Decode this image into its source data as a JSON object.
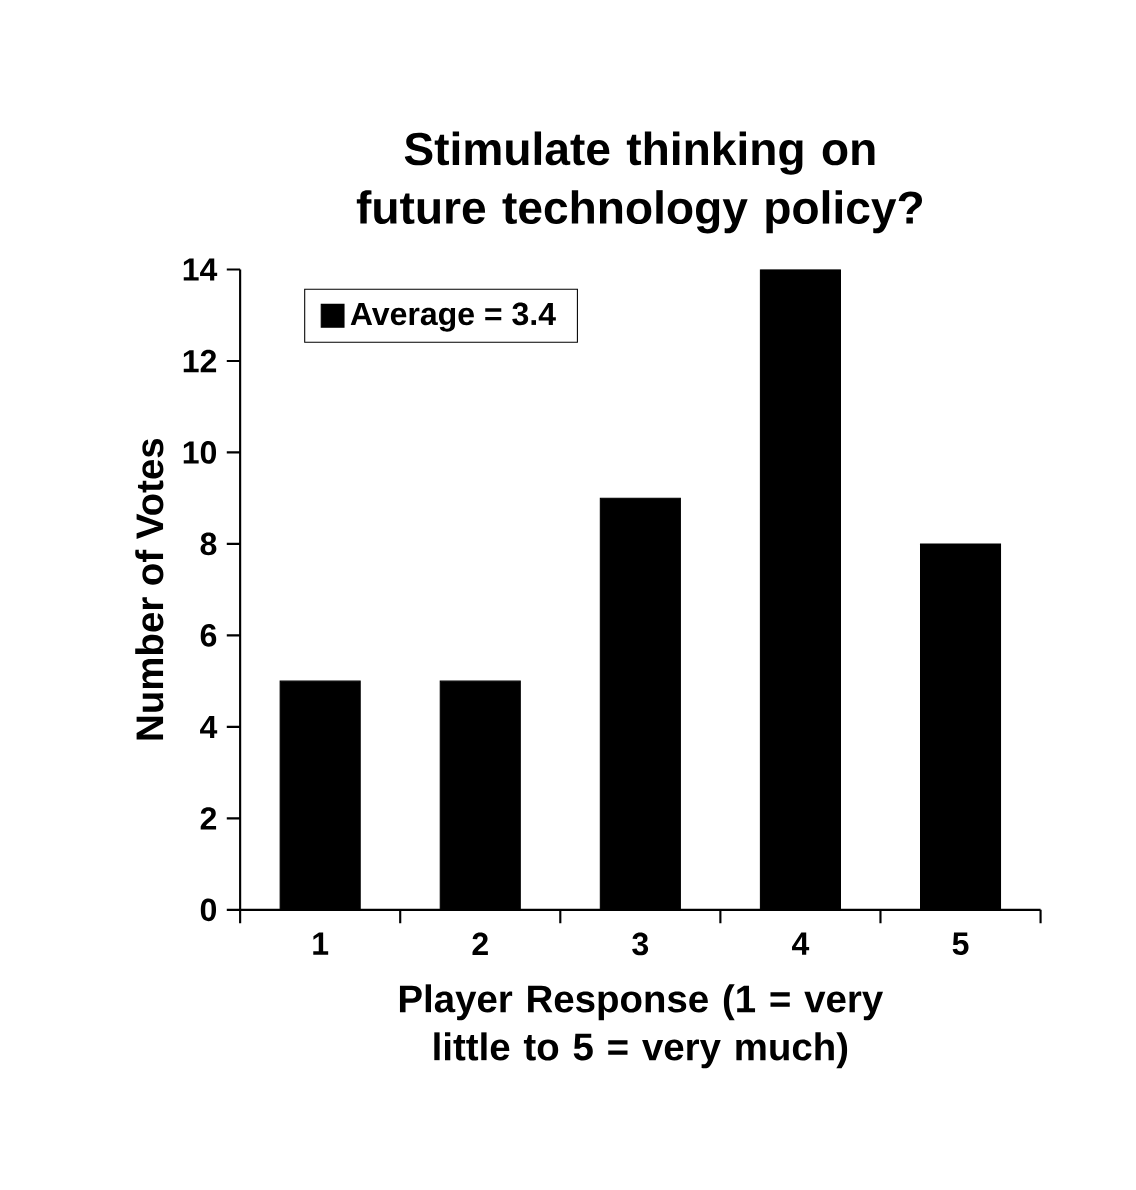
{
  "chart_data": {
    "type": "bar",
    "title": "Stimulate thinking on future technology policy?",
    "xlabel": "Player Response (1 = very little to 5 = very much)",
    "ylabel": "Number of Votes",
    "categories": [
      "1",
      "2",
      "3",
      "4",
      "5"
    ],
    "series": [
      {
        "name": "Average = 3.4",
        "color": "#000000",
        "values": [
          5,
          5,
          9,
          14,
          8
        ]
      }
    ],
    "ylim": [
      0,
      14
    ],
    "yticks": [
      0,
      2,
      4,
      6,
      8,
      10,
      12,
      14
    ],
    "legend": "top left"
  }
}
